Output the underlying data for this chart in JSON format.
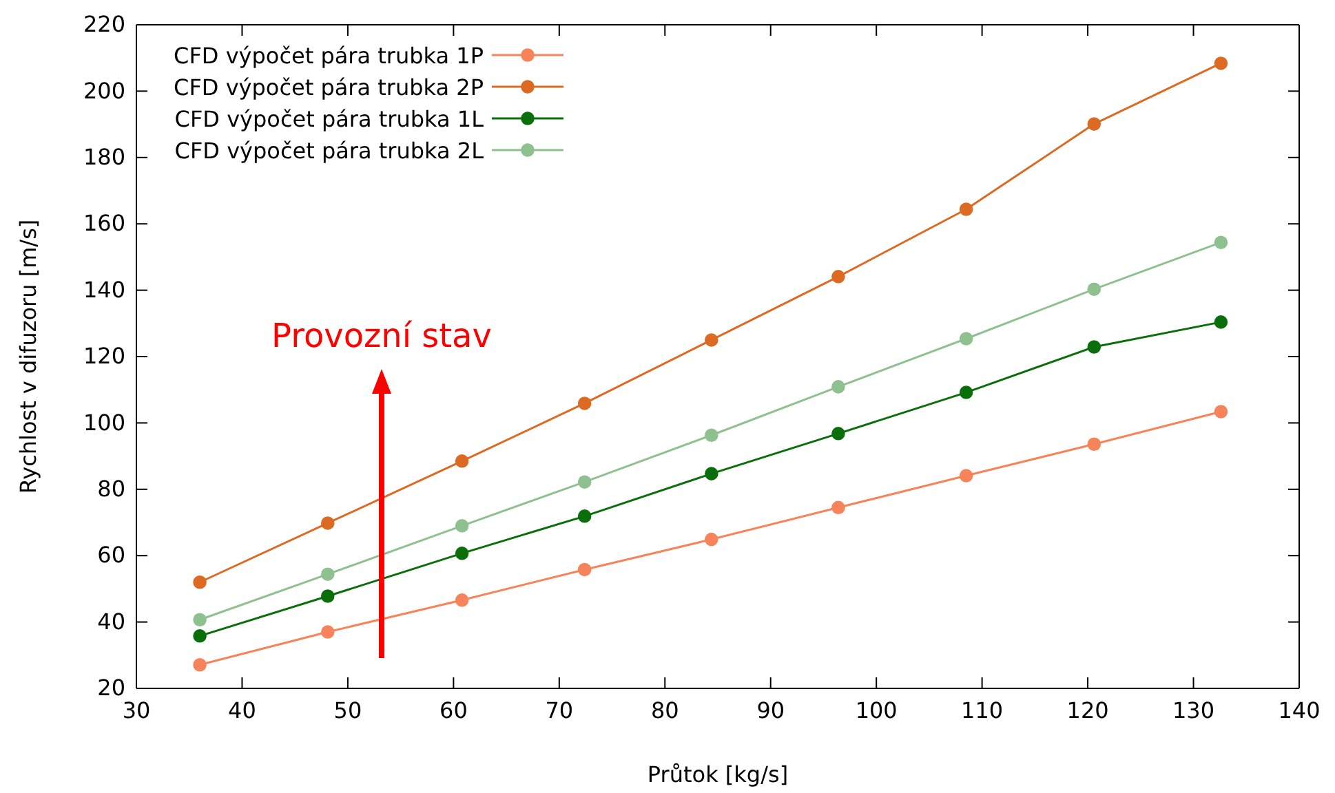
{
  "chart_data": {
    "type": "line",
    "xlabel": "Průtok [kg/s]",
    "ylabel": "Rychlost v difuzoru [m/s]",
    "x": [
      36.0,
      48.1,
      60.8,
      72.4,
      84.4,
      96.4,
      108.5,
      120.6,
      132.6
    ],
    "series": [
      {
        "name": "CFD výpočet pára trubka 1P",
        "color": "#f6835a",
        "values": [
          27.1,
          37.0,
          46.6,
          55.8,
          64.9,
          74.5,
          84.1,
          93.6,
          103.4
        ]
      },
      {
        "name": "CFD výpočet pára trubka 2P",
        "color": "#dc6a22",
        "values": [
          52.0,
          69.8,
          88.5,
          105.9,
          125.0,
          144.1,
          164.4,
          190.1,
          208.4
        ]
      },
      {
        "name": "CFD výpočet pára trubka 1L",
        "color": "#0a6e0a",
        "values": [
          35.8,
          47.8,
          60.7,
          71.9,
          84.7,
          96.8,
          109.2,
          122.9,
          130.4
        ]
      },
      {
        "name": "CFD výpočet pára trubka 2L",
        "color": "#8fc08f",
        "values": [
          40.7,
          54.4,
          69.0,
          82.2,
          96.3,
          110.9,
          125.4,
          140.3,
          154.4
        ]
      }
    ],
    "xlim": [
      30,
      140
    ],
    "xticks": [
      30,
      40,
      50,
      60,
      70,
      80,
      90,
      100,
      110,
      120,
      130,
      140
    ],
    "ylim": [
      20,
      220
    ],
    "yticks": [
      20,
      40,
      60,
      80,
      100,
      120,
      140,
      160,
      180,
      200,
      220
    ],
    "annotations": [
      "Provozní stav"
    ],
    "marker": "circle",
    "line_style": "solid",
    "legend": "top left",
    "grid": false
  }
}
